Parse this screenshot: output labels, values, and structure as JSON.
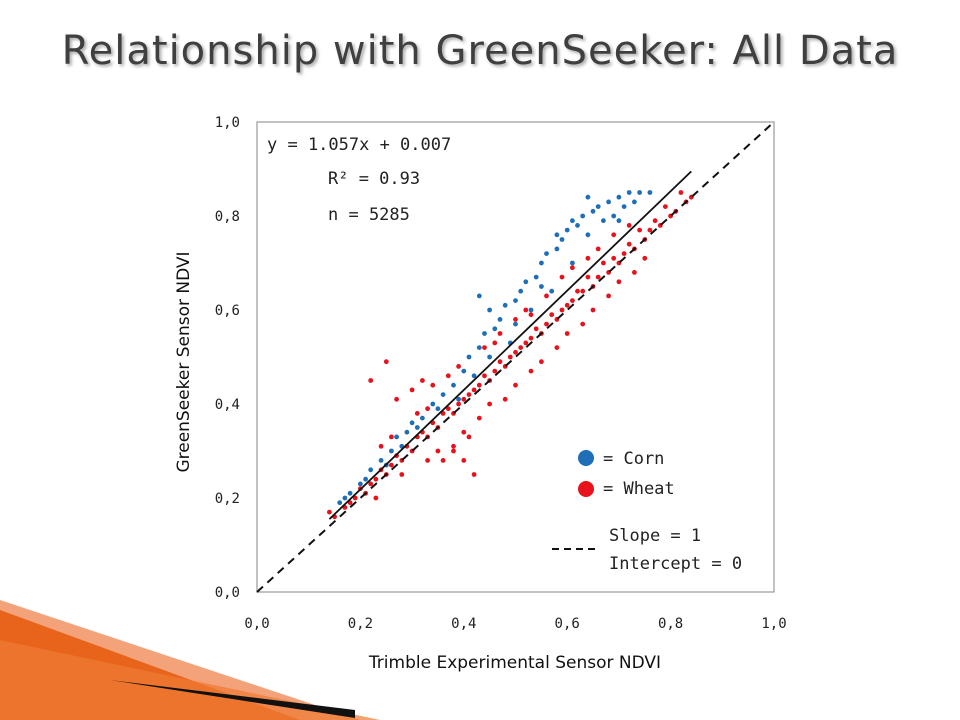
{
  "slide": {
    "title": "Relationship with GreenSeeker: All Data"
  },
  "colors": {
    "corn": "#1f6fb8",
    "wheat": "#e8121c",
    "frame": "#9a9a9a",
    "accent_orange": "#e8641a"
  },
  "chart_data": {
    "type": "scatter",
    "title": "",
    "xlabel": "Trimble Experimental Sensor NDVI",
    "ylabel": "GreenSeeker Sensor NDVI",
    "xlim": [
      0,
      1
    ],
    "ylim": [
      0,
      1
    ],
    "x_ticks": [
      "0,0",
      "0,2",
      "0,4",
      "0,6",
      "0,8",
      "1,0"
    ],
    "y_ticks": [
      "0,0",
      "0,2",
      "0,4",
      "0,6",
      "0,8",
      "1,0"
    ],
    "grid": false,
    "regression": {
      "slope": 1.057,
      "intercept": 0.007,
      "x_range": [
        0.14,
        0.84
      ]
    },
    "one_to_one_line": {
      "slope": 1,
      "intercept": 0,
      "x_range": [
        0,
        1
      ]
    },
    "annotations": {
      "equation": "y = 1.057x + 0.007",
      "r_squared": "R² = 0.93",
      "n": "n = 5285"
    },
    "legend": {
      "placement": "bottom-right",
      "corn": "= Corn",
      "wheat": "= Wheat",
      "slope": "Slope = 1",
      "intercept": "Intercept = 0"
    },
    "series": [
      {
        "name": "Corn",
        "points": [
          [
            0.16,
            0.19
          ],
          [
            0.18,
            0.21
          ],
          [
            0.2,
            0.23
          ],
          [
            0.22,
            0.26
          ],
          [
            0.24,
            0.28
          ],
          [
            0.26,
            0.3
          ],
          [
            0.27,
            0.33
          ],
          [
            0.29,
            0.34
          ],
          [
            0.3,
            0.36
          ],
          [
            0.32,
            0.37
          ],
          [
            0.34,
            0.4
          ],
          [
            0.36,
            0.42
          ],
          [
            0.38,
            0.44
          ],
          [
            0.4,
            0.47
          ],
          [
            0.41,
            0.5
          ],
          [
            0.43,
            0.52
          ],
          [
            0.44,
            0.55
          ],
          [
            0.46,
            0.56
          ],
          [
            0.47,
            0.58
          ],
          [
            0.48,
            0.61
          ],
          [
            0.5,
            0.62
          ],
          [
            0.51,
            0.64
          ],
          [
            0.52,
            0.66
          ],
          [
            0.54,
            0.67
          ],
          [
            0.55,
            0.7
          ],
          [
            0.56,
            0.72
          ],
          [
            0.58,
            0.73
          ],
          [
            0.59,
            0.75
          ],
          [
            0.6,
            0.77
          ],
          [
            0.62,
            0.78
          ],
          [
            0.63,
            0.8
          ],
          [
            0.65,
            0.81
          ],
          [
            0.66,
            0.82
          ],
          [
            0.68,
            0.83
          ],
          [
            0.7,
            0.84
          ],
          [
            0.72,
            0.85
          ],
          [
            0.74,
            0.85
          ],
          [
            0.76,
            0.85
          ],
          [
            0.64,
            0.84
          ],
          [
            0.67,
            0.79
          ],
          [
            0.69,
            0.8
          ],
          [
            0.71,
            0.82
          ],
          [
            0.73,
            0.83
          ],
          [
            0.61,
            0.7
          ],
          [
            0.57,
            0.64
          ],
          [
            0.53,
            0.6
          ],
          [
            0.49,
            0.53
          ],
          [
            0.45,
            0.5
          ],
          [
            0.42,
            0.46
          ],
          [
            0.39,
            0.41
          ],
          [
            0.35,
            0.39
          ],
          [
            0.31,
            0.35
          ],
          [
            0.28,
            0.31
          ],
          [
            0.25,
            0.27
          ],
          [
            0.21,
            0.24
          ],
          [
            0.17,
            0.2
          ],
          [
            0.43,
            0.63
          ],
          [
            0.45,
            0.6
          ],
          [
            0.5,
            0.57
          ],
          [
            0.55,
            0.65
          ],
          [
            0.58,
            0.76
          ],
          [
            0.61,
            0.79
          ],
          [
            0.64,
            0.76
          ],
          [
            0.7,
            0.79
          ]
        ]
      },
      {
        "name": "Wheat",
        "points": [
          [
            0.14,
            0.17
          ],
          [
            0.15,
            0.16
          ],
          [
            0.17,
            0.18
          ],
          [
            0.19,
            0.2
          ],
          [
            0.21,
            0.21
          ],
          [
            0.23,
            0.24
          ],
          [
            0.25,
            0.25
          ],
          [
            0.26,
            0.27
          ],
          [
            0.28,
            0.28
          ],
          [
            0.3,
            0.3
          ],
          [
            0.31,
            0.33
          ],
          [
            0.33,
            0.33
          ],
          [
            0.35,
            0.35
          ],
          [
            0.36,
            0.38
          ],
          [
            0.38,
            0.38
          ],
          [
            0.4,
            0.41
          ],
          [
            0.41,
            0.42
          ],
          [
            0.43,
            0.44
          ],
          [
            0.45,
            0.45
          ],
          [
            0.46,
            0.47
          ],
          [
            0.48,
            0.48
          ],
          [
            0.5,
            0.51
          ],
          [
            0.51,
            0.52
          ],
          [
            0.53,
            0.54
          ],
          [
            0.55,
            0.55
          ],
          [
            0.56,
            0.57
          ],
          [
            0.58,
            0.58
          ],
          [
            0.6,
            0.61
          ],
          [
            0.61,
            0.62
          ],
          [
            0.63,
            0.64
          ],
          [
            0.65,
            0.65
          ],
          [
            0.66,
            0.67
          ],
          [
            0.68,
            0.68
          ],
          [
            0.7,
            0.7
          ],
          [
            0.71,
            0.72
          ],
          [
            0.73,
            0.73
          ],
          [
            0.75,
            0.75
          ],
          [
            0.76,
            0.77
          ],
          [
            0.78,
            0.78
          ],
          [
            0.8,
            0.8
          ],
          [
            0.81,
            0.81
          ],
          [
            0.83,
            0.83
          ],
          [
            0.84,
            0.84
          ],
          [
            0.82,
            0.85
          ],
          [
            0.79,
            0.82
          ],
          [
            0.77,
            0.79
          ],
          [
            0.74,
            0.77
          ],
          [
            0.72,
            0.74
          ],
          [
            0.69,
            0.71
          ],
          [
            0.67,
            0.7
          ],
          [
            0.64,
            0.67
          ],
          [
            0.62,
            0.64
          ],
          [
            0.59,
            0.6
          ],
          [
            0.57,
            0.59
          ],
          [
            0.54,
            0.56
          ],
          [
            0.52,
            0.53
          ],
          [
            0.49,
            0.5
          ],
          [
            0.47,
            0.49
          ],
          [
            0.44,
            0.46
          ],
          [
            0.42,
            0.43
          ],
          [
            0.39,
            0.4
          ],
          [
            0.37,
            0.39
          ],
          [
            0.34,
            0.36
          ],
          [
            0.32,
            0.34
          ],
          [
            0.29,
            0.31
          ],
          [
            0.27,
            0.29
          ],
          [
            0.24,
            0.26
          ],
          [
            0.22,
            0.23
          ],
          [
            0.2,
            0.22
          ],
          [
            0.18,
            0.19
          ],
          [
            0.35,
            0.3
          ],
          [
            0.4,
            0.34
          ],
          [
            0.45,
            0.4
          ],
          [
            0.5,
            0.44
          ],
          [
            0.55,
            0.49
          ],
          [
            0.6,
            0.55
          ],
          [
            0.65,
            0.6
          ],
          [
            0.7,
            0.66
          ],
          [
            0.75,
            0.71
          ],
          [
            0.43,
            0.37
          ],
          [
            0.48,
            0.41
          ],
          [
            0.53,
            0.47
          ],
          [
            0.58,
            0.52
          ],
          [
            0.63,
            0.57
          ],
          [
            0.68,
            0.63
          ],
          [
            0.73,
            0.68
          ],
          [
            0.38,
            0.31
          ],
          [
            0.33,
            0.28
          ],
          [
            0.28,
            0.25
          ],
          [
            0.23,
            0.2
          ],
          [
            0.42,
            0.25
          ],
          [
            0.4,
            0.28
          ],
          [
            0.38,
            0.3
          ],
          [
            0.36,
            0.28
          ],
          [
            0.41,
            0.33
          ],
          [
            0.22,
            0.45
          ],
          [
            0.25,
            0.49
          ],
          [
            0.27,
            0.41
          ],
          [
            0.3,
            0.43
          ],
          [
            0.32,
            0.45
          ],
          [
            0.34,
            0.44
          ],
          [
            0.37,
            0.46
          ],
          [
            0.39,
            0.48
          ],
          [
            0.44,
            0.52
          ],
          [
            0.46,
            0.53
          ],
          [
            0.5,
            0.58
          ],
          [
            0.53,
            0.59
          ],
          [
            0.56,
            0.63
          ],
          [
            0.59,
            0.67
          ],
          [
            0.61,
            0.69
          ],
          [
            0.64,
            0.71
          ],
          [
            0.66,
            0.73
          ],
          [
            0.69,
            0.76
          ],
          [
            0.72,
            0.78
          ],
          [
            0.33,
            0.39
          ],
          [
            0.31,
            0.38
          ],
          [
            0.26,
            0.33
          ],
          [
            0.24,
            0.31
          ],
          [
            0.47,
            0.55
          ],
          [
            0.52,
            0.6
          ]
        ]
      }
    ]
  }
}
